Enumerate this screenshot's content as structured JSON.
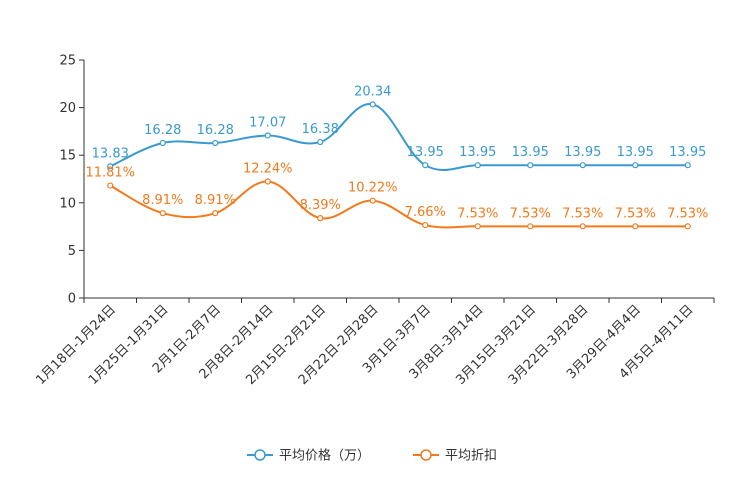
{
  "chart_data": {
    "type": "line",
    "title": "",
    "xlabel": "",
    "ylabel": "",
    "ylim": [
      0,
      25
    ],
    "yticks": [
      0,
      5,
      10,
      15,
      20,
      25
    ],
    "categories": [
      "1月18日-1月24日",
      "1月25日-1月31日",
      "2月1日-2月7日",
      "2月8日-2月14日",
      "2月15日-2月21日",
      "2月22日-2月28日",
      "3月1日-3月7日",
      "3月8日-3月14日",
      "3月15日-3月21日",
      "3月22日-3月28日",
      "3月29日-4月4日",
      "4月5日-4月11日"
    ],
    "series": [
      {
        "name": "平均价格（万）",
        "color": "#3a9ad0",
        "values": [
          13.83,
          16.28,
          16.28,
          17.07,
          16.38,
          20.34,
          13.95,
          13.95,
          13.95,
          13.95,
          13.95,
          13.95
        ],
        "labels": [
          "13.83",
          "16.28",
          "16.28",
          "17.07",
          "16.38",
          "20.34",
          "13.95",
          "13.95",
          "13.95",
          "13.95",
          "13.95",
          "13.95"
        ]
      },
      {
        "name": "平均折扣",
        "color": "#f27a1d",
        "values": [
          11.81,
          8.91,
          8.91,
          12.24,
          8.39,
          10.22,
          7.66,
          7.53,
          7.53,
          7.53,
          7.53,
          7.53
        ],
        "labels": [
          "11.81%",
          "8.91%",
          "8.91%",
          "12.24%",
          "8.39%",
          "10.22%",
          "7.66%",
          "7.53%",
          "7.53%",
          "7.53%",
          "7.53%",
          "7.53%"
        ]
      }
    ],
    "legend_position": "bottom-center"
  }
}
